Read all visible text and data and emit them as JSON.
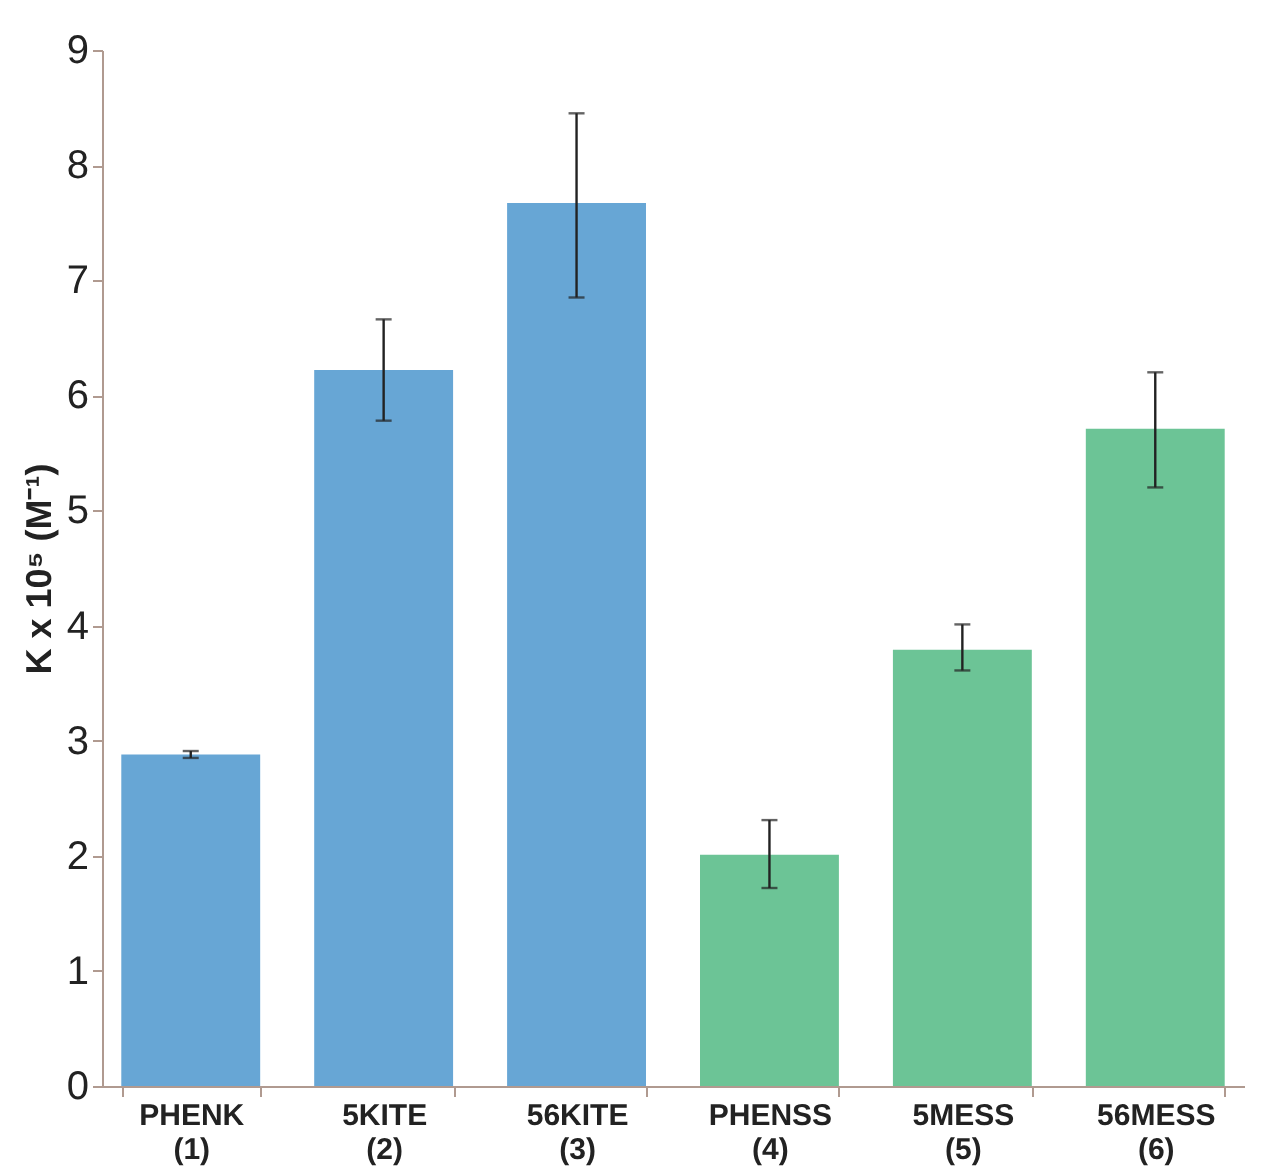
{
  "chart_data": {
    "type": "bar",
    "categories": [
      "PHENK\n(1)",
      "5KITE\n(2)",
      "56KITE\n(3)",
      "PHENSS\n(4)",
      "5MESS\n(5)",
      "56MESS\n(6)"
    ],
    "values": [
      2.88,
      6.22,
      7.67,
      2.01,
      3.79,
      5.71
    ],
    "colors": [
      "#67a6d5",
      "#67a6d5",
      "#67a6d5",
      "#6cc496",
      "#6cc496",
      "#6cc496"
    ],
    "errors": [
      [
        2.85,
        2.91
      ],
      [
        5.78,
        6.66
      ],
      [
        6.85,
        8.45
      ],
      [
        1.72,
        2.31
      ],
      [
        3.61,
        4.01
      ],
      [
        5.2,
        6.2
      ]
    ],
    "ylabel": "K x 10⁵ (M⁻¹)",
    "ylim": [
      0,
      9
    ],
    "yticks": [
      0,
      1,
      2,
      3,
      4,
      5,
      6,
      7,
      8,
      9
    ],
    "grid": false
  }
}
